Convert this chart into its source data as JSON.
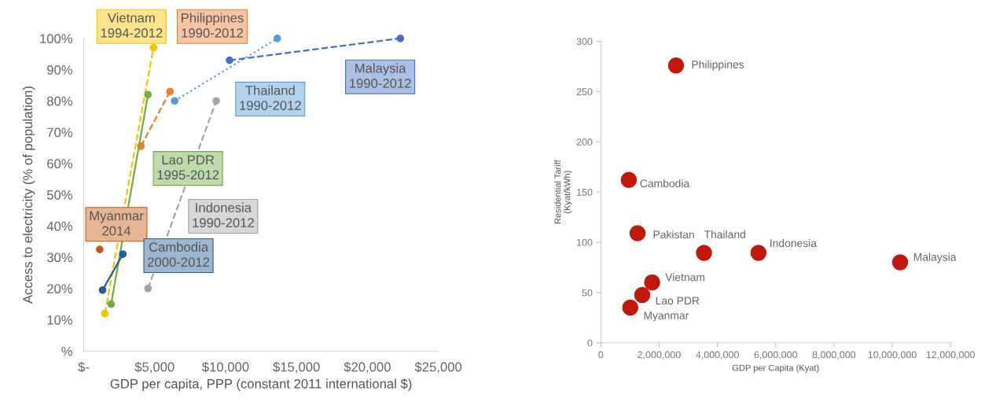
{
  "chart_data": [
    {
      "type": "line",
      "xlabel": "GDP per capita, PPP (constant 2011 international $)",
      "ylabel": "Access to electricity (% of population)",
      "marker": "circle",
      "grid": false,
      "legend": false,
      "xlim": [
        0,
        25000
      ],
      "ylim": [
        0,
        100
      ],
      "xticks": [
        {
          "value": 0,
          "label": "$-"
        },
        {
          "value": 5000,
          "label": "$5,000"
        },
        {
          "value": 10000,
          "label": "$10,000"
        },
        {
          "value": 15000,
          "label": "$15,000"
        },
        {
          "value": 20000,
          "label": "$20,000"
        },
        {
          "value": 25000,
          "label": "$25,000"
        }
      ],
      "yticks": [
        {
          "value": 0,
          "label": "%"
        },
        {
          "value": 10,
          "label": "10%"
        },
        {
          "value": 20,
          "label": "20%"
        },
        {
          "value": 30,
          "label": "30%"
        },
        {
          "value": 40,
          "label": "40%"
        },
        {
          "value": 50,
          "label": "50%"
        },
        {
          "value": 60,
          "label": "60%"
        },
        {
          "value": 70,
          "label": "70%"
        },
        {
          "value": 80,
          "label": "80%"
        },
        {
          "value": 90,
          "label": "90%"
        },
        {
          "value": 100,
          "label": "100%"
        }
      ],
      "series": [
        {
          "name": "Vietnam\n1994-2012",
          "color": "#f5c400",
          "line_style": "dashed",
          "x": [
            1490,
            4920
          ],
          "values": [
            12,
            97
          ]
        },
        {
          "name": "Philippines\n1990-2012",
          "color": "#ef7d32",
          "line_style": "dashed",
          "x": [
            4030,
            6080
          ],
          "values": [
            65.5,
            83
          ]
        },
        {
          "name": "Thailand\n1990-2012",
          "color": "#5b9bd5",
          "line_style": "dotted",
          "x": [
            6410,
            13650
          ],
          "values": [
            80,
            100
          ]
        },
        {
          "name": "Malaysia\n1990-2012",
          "color": "#4472c4",
          "line_style": "dashed",
          "x": [
            10280,
            22320
          ],
          "values": [
            93,
            100
          ]
        },
        {
          "name": "Lao PDR\n1995-2012",
          "color": "#70ad47",
          "line_style": "solid",
          "x": [
            1930,
            4530
          ],
          "values": [
            15,
            82
          ]
        },
        {
          "name": "Myanmar\n2014",
          "color": "#c55a11",
          "line_style": "solid",
          "x": [
            1130
          ],
          "values": [
            32.5
          ]
        },
        {
          "name": "Indonesia\n1990-2012",
          "color": "#a5a5a5",
          "line_style": "dashed",
          "x": [
            4530,
            9340
          ],
          "values": [
            20,
            80
          ]
        },
        {
          "name": "Cambodia\n2000-2012",
          "color": "#255e91",
          "line_style": "solid",
          "x": [
            1330,
            2760
          ],
          "values": [
            19.5,
            31
          ]
        }
      ]
    },
    {
      "type": "scatter",
      "xlabel": "GDP per Capita (Kyat)",
      "ylabel": "Residential Tariff\n(Kyat/kWh)",
      "marker": "circle",
      "grid": false,
      "legend": false,
      "xlim": [
        0,
        12000000
      ],
      "ylim": [
        0,
        300
      ],
      "xticks": [
        0,
        {
          "value": 2000000,
          "label": "2,000,000"
        },
        {
          "value": 4000000,
          "label": "4,000,000"
        },
        {
          "value": 6000000,
          "label": "6,000,000"
        },
        {
          "value": 8000000,
          "label": "8,000,000"
        },
        {
          "value": 10000000,
          "label": "10,000,000"
        },
        {
          "value": 12000000,
          "label": "12,000,000"
        }
      ],
      "yticks": [
        0,
        50,
        100,
        150,
        200,
        250,
        300
      ],
      "series": [
        {
          "color": "#c0190b",
          "x": [
            2580000,
            960000,
            1260000,
            3540000,
            5410000,
            10270000,
            1760000,
            1420000,
            1010000
          ],
          "values": [
            276,
            162,
            109,
            89.5,
            89.5,
            80,
            60,
            47.5,
            35
          ]
        }
      ],
      "annotations": [
        {
          "text": "Philippines",
          "x": 2580000,
          "y": 276
        },
        {
          "text": "Cambodia",
          "x": 960000,
          "y": 162
        },
        {
          "text": "Pakistan",
          "x": 1260000,
          "y": 109
        },
        {
          "text": "Thailand",
          "x": 3540000,
          "y": 89.5
        },
        {
          "text": "Indonesia",
          "x": 5410000,
          "y": 89.5
        },
        {
          "text": "Malaysia",
          "x": 10270000,
          "y": 80
        },
        {
          "text": "Vietnam",
          "x": 1760000,
          "y": 60
        },
        {
          "text": "Lao PDR",
          "x": 1420000,
          "y": 47.5
        },
        {
          "text": "Myanmar",
          "x": 1010000,
          "y": 35
        }
      ]
    }
  ]
}
